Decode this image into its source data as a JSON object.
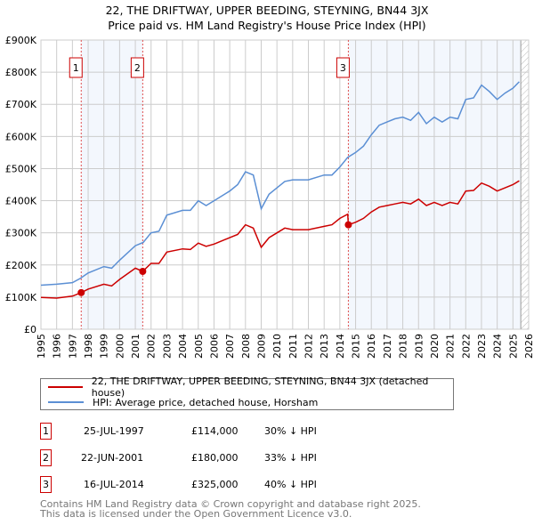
{
  "title": "22, THE DRIFTWAY, UPPER BEEDING, STEYNING, BN44 3JX",
  "subtitle": "Price paid vs. HM Land Registry's House Price Index (HPI)",
  "chart_data": {
    "type": "line",
    "xlim": [
      1995,
      2026
    ],
    "ylim": [
      0,
      900000
    ],
    "x_ticks": [
      "1995",
      "1996",
      "1997",
      "1998",
      "1999",
      "2000",
      "2001",
      "2002",
      "2003",
      "2004",
      "2005",
      "2006",
      "2007",
      "2008",
      "2009",
      "2010",
      "2011",
      "2012",
      "2013",
      "2014",
      "2015",
      "2016",
      "2017",
      "2018",
      "2019",
      "2020",
      "2021",
      "2022",
      "2023",
      "2024",
      "2025",
      "2026"
    ],
    "y_ticks": [
      {
        "v": 0,
        "label": "£0"
      },
      {
        "v": 100000,
        "label": "£100K"
      },
      {
        "v": 200000,
        "label": "£200K"
      },
      {
        "v": 300000,
        "label": "£300K"
      },
      {
        "v": 400000,
        "label": "£400K"
      },
      {
        "v": 500000,
        "label": "£500K"
      },
      {
        "v": 600000,
        "label": "£600K"
      },
      {
        "v": 700000,
        "label": "£700K"
      },
      {
        "v": 800000,
        "label": "£800K"
      },
      {
        "v": 900000,
        "label": "£900K"
      }
    ],
    "shaded_ranges": [
      [
        1997.56,
        2001.47
      ],
      [
        2014.54,
        2025.5
      ]
    ],
    "hatched_range": [
      2025.5,
      2026
    ],
    "series": [
      {
        "name": "22, THE DRIFTWAY, UPPER BEEDING, STEYNING, BN44 3JX (detached house)",
        "color": "#cc0000",
        "x": [
          1995,
          1996,
          1997,
          1997.56,
          1998,
          1999,
          1999.5,
          2000,
          2001,
          2001.47,
          2002,
          2002.5,
          2003,
          2004,
          2004.5,
          2005,
          2005.5,
          2006,
          2007,
          2007.5,
          2008,
          2008.5,
          2009,
          2009.5,
          2010,
          2010.5,
          2011,
          2012,
          2013,
          2013.5,
          2014,
          2014.5,
          2014.54,
          2015,
          2015.5,
          2016,
          2016.5,
          2017,
          2017.5,
          2018,
          2018.5,
          2019,
          2019.5,
          2020,
          2020.5,
          2021,
          2021.5,
          2022,
          2022.5,
          2023,
          2023.5,
          2024,
          2024.5,
          2025,
          2025.4
        ],
        "y": [
          99000,
          97000,
          103000,
          114000,
          125000,
          140000,
          135000,
          155000,
          190000,
          180000,
          205000,
          205000,
          240000,
          250000,
          248000,
          268000,
          258000,
          265000,
          285000,
          295000,
          325000,
          315000,
          255000,
          285000,
          300000,
          315000,
          310000,
          310000,
          320000,
          325000,
          345000,
          358000,
          325000,
          333000,
          345000,
          365000,
          380000,
          385000,
          390000,
          395000,
          390000,
          405000,
          385000,
          395000,
          385000,
          395000,
          390000,
          430000,
          432000,
          455000,
          445000,
          430000,
          440000,
          450000,
          462000
        ]
      },
      {
        "name": "HPI: Average price, detached house, Horsham",
        "color": "#5b8fd4",
        "x": [
          1995,
          1996,
          1997,
          1997.5,
          1998,
          1999,
          1999.5,
          2000,
          2001,
          2001.5,
          2002,
          2002.5,
          2003,
          2004,
          2004.5,
          2005,
          2005.5,
          2006,
          2007,
          2007.5,
          2008,
          2008.5,
          2009,
          2009.5,
          2010,
          2010.5,
          2011,
          2012,
          2013,
          2013.5,
          2014,
          2014.5,
          2015,
          2015.5,
          2016,
          2016.5,
          2017,
          2017.5,
          2018,
          2018.5,
          2019,
          2019.5,
          2020,
          2020.5,
          2021,
          2021.5,
          2022,
          2022.5,
          2023,
          2023.5,
          2024,
          2024.5,
          2025,
          2025.4
        ],
        "y": [
          137000,
          140000,
          145000,
          158000,
          175000,
          195000,
          190000,
          215000,
          260000,
          270000,
          300000,
          305000,
          355000,
          370000,
          370000,
          400000,
          385000,
          400000,
          430000,
          450000,
          490000,
          480000,
          375000,
          420000,
          440000,
          460000,
          465000,
          465000,
          480000,
          480000,
          505000,
          535000,
          550000,
          570000,
          605000,
          635000,
          645000,
          655000,
          660000,
          650000,
          675000,
          640000,
          660000,
          645000,
          660000,
          655000,
          715000,
          720000,
          760000,
          740000,
          715000,
          735000,
          750000,
          770000
        ]
      }
    ],
    "sales": [
      {
        "n": "1",
        "x": 1997.56,
        "price": 114000,
        "date": "25-JUL-1997",
        "price_label": "£114,000",
        "hpi": "30% ↓ HPI"
      },
      {
        "n": "2",
        "x": 2001.47,
        "price": 180000,
        "date": "22-JUN-2001",
        "price_label": "£180,000",
        "hpi": "33% ↓ HPI"
      },
      {
        "n": "3",
        "x": 2014.54,
        "price": 325000,
        "date": "16-JUL-2014",
        "price_label": "£325,000",
        "hpi": "40% ↓ HPI"
      }
    ]
  },
  "legend": {
    "red": "22, THE DRIFTWAY, UPPER BEEDING, STEYNING, BN44 3JX (detached house)",
    "blue": "HPI: Average price, detached house, Horsham"
  },
  "footer": {
    "line1": "Contains HM Land Registry data © Crown copyright and database right 2025.",
    "line2": "This data is licensed under the Open Government Licence v3.0."
  }
}
